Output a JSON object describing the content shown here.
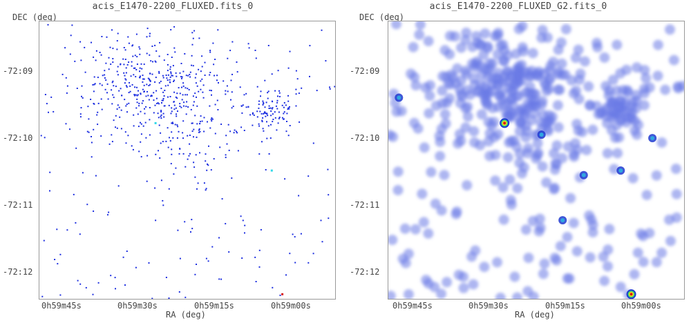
{
  "chart_data": [
    {
      "type": "scatter",
      "title": "acis_E1470-2200_FLUXED.fits_0",
      "xlabel": "RA (deg)",
      "ylabel": "DEC (deg)",
      "xticks": [
        "0h59m45s",
        "0h59m30s",
        "0h59m15s",
        "0h59m00s"
      ],
      "yticks": [
        "-72:09",
        "-72:10",
        "-72:11",
        "-72:12"
      ],
      "xlim": [
        "0h59m49s",
        "0h58m53s"
      ],
      "ylim": [
        "-72:08:25",
        "-72:12:25"
      ],
      "rendering": "event map",
      "colors": {
        "low": "#1c2ee0",
        "mid": "#30d8e8",
        "high": "#f0e020",
        "peak": "#d81818"
      },
      "hotspots": [
        {
          "ra": "0h59m27s",
          "dec": "-72:09:53",
          "level": "mid"
        },
        {
          "ra": "0h59m05s",
          "dec": "-72:10:34",
          "level": "mid"
        },
        {
          "ra": "0h59m03s",
          "dec": "-72:12:21",
          "level": "peak"
        }
      ]
    },
    {
      "type": "heatmap",
      "title": "acis_E1470-2200_FLUXED_G2.fits_0",
      "xlabel": "RA (deg)",
      "ylabel": "DEC (deg)",
      "xticks": [
        "0h59m45s",
        "0h59m30s",
        "0h59m15s",
        "0h59m00s"
      ],
      "yticks": [
        "-72:09",
        "-72:10",
        "-72:11",
        "-72:12"
      ],
      "xlim": [
        "0h59m49s",
        "0h58m53s"
      ],
      "ylim": [
        "-72:08:25",
        "-72:12:25"
      ],
      "rendering": "gaussian smoothed",
      "colors": {
        "low": "#6a7ae6",
        "mid": "#1e3ad0",
        "high": "#f0e020",
        "peak": "#d81818"
      },
      "hotspots": [
        {
          "ra": "0h59m47s",
          "dec": "-72:09:31",
          "level": "mid"
        },
        {
          "ra": "0h59m27s",
          "dec": "-72:09:53",
          "level": "peak"
        },
        {
          "ra": "0h59m20s",
          "dec": "-72:10:03",
          "level": "mid"
        },
        {
          "ra": "0h59m12s",
          "dec": "-72:10:38",
          "level": "mid"
        },
        {
          "ra": "0h59m05s",
          "dec": "-72:10:34",
          "level": "mid"
        },
        {
          "ra": "0h59m16s",
          "dec": "-72:11:17",
          "level": "mid"
        },
        {
          "ra": "0h58m59s",
          "dec": "-72:10:06",
          "level": "mid"
        },
        {
          "ra": "0h59m03s",
          "dec": "-72:12:21",
          "level": "peak"
        }
      ]
    }
  ]
}
